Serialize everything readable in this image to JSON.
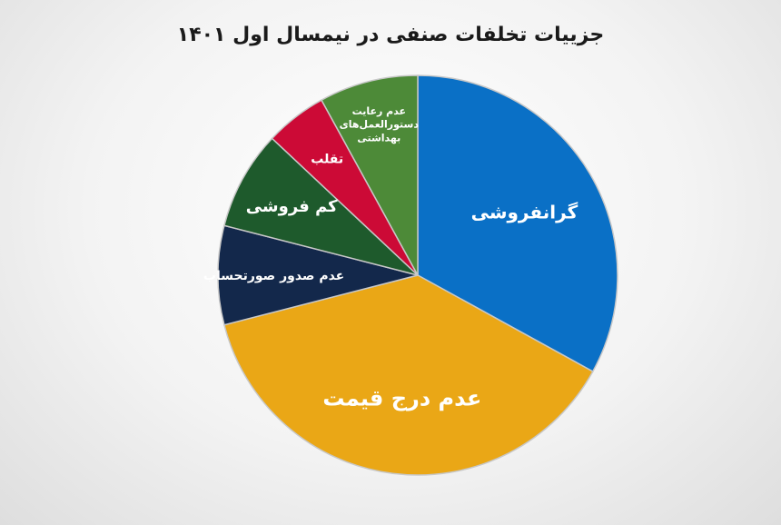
{
  "chart_data": {
    "type": "pie",
    "title": "جزییات تخلفات صنفی در نیمسال اول ۱۴۰۱",
    "slices": [
      {
        "label": "گرانفروشی",
        "value": 33,
        "color": "#0a70c6"
      },
      {
        "label": "عدم درج قیمت",
        "value": 38,
        "color": "#eaa716"
      },
      {
        "label": "عدم صدور صورتحساب",
        "value": 8,
        "color": "#13284b"
      },
      {
        "label": "کم فروشی",
        "value": 8,
        "color": "#1e5a2c"
      },
      {
        "label": "تقلب",
        "value": 5,
        "color": "#cc0a36"
      },
      {
        "label": "عدم رعایت دستورالعمل‌های بهداشتی",
        "label_lines": [
          "عدم رعایت",
          "دستورالعمل‌های",
          "بهداشتی"
        ],
        "value": 8,
        "color": "#4d8a38"
      }
    ]
  }
}
